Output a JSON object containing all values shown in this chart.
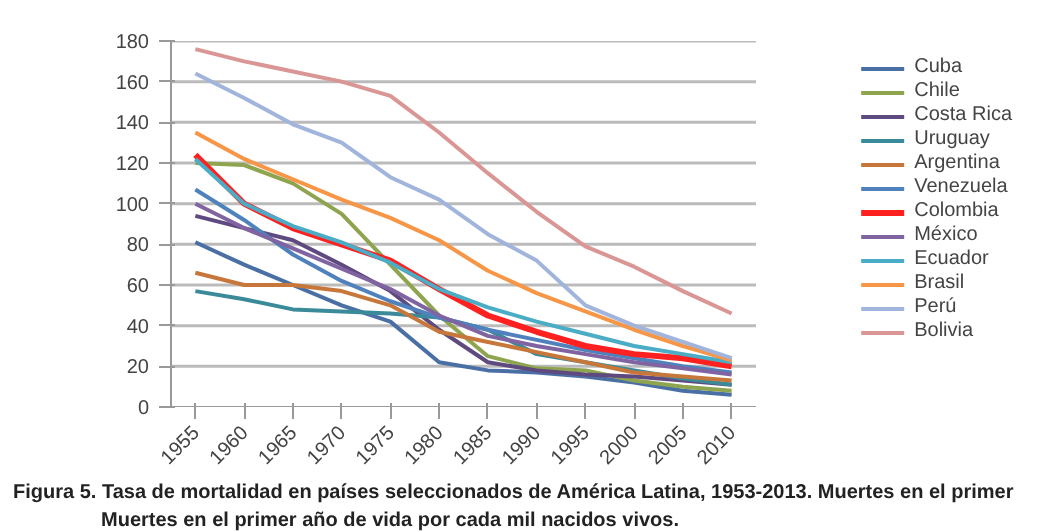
{
  "chart_data": {
    "type": "line",
    "categories": [
      "1955",
      "1960",
      "1965",
      "1970",
      "1975",
      "1980",
      "1985",
      "1990",
      "1995",
      "2000",
      "2005",
      "2010"
    ],
    "ylim": [
      0,
      180
    ],
    "yticks": [
      0,
      20,
      40,
      60,
      80,
      100,
      120,
      140,
      160,
      180
    ],
    "grid": "y",
    "legend": "right",
    "marker": "none",
    "annotations": [
      "Figura 5. Tasa de mortalidad en países seleccionados de América Latina, 1953-2013. Muertes en el primer",
      "Muertes en el primer año de vida por cada mil nacidos vivos."
    ],
    "series": [
      {
        "name": "Cuba",
        "color": "#4a6fa5",
        "values": [
          81,
          70,
          60,
          50,
          42,
          22,
          18,
          17,
          15,
          12,
          8,
          6
        ]
      },
      {
        "name": "Chile",
        "color": "#8ea44f",
        "values": [
          120,
          119,
          110,
          95,
          70,
          45,
          25,
          19,
          18,
          13,
          10,
          8
        ]
      },
      {
        "name": "Costa Rica",
        "color": "#5e4a7e",
        "values": [
          94,
          88,
          82,
          70,
          57,
          38,
          22,
          18,
          16,
          15,
          13,
          11
        ]
      },
      {
        "name": "Uruguay",
        "color": "#3a8a9a",
        "values": [
          57,
          53,
          48,
          47,
          46,
          44,
          38,
          26,
          22,
          18,
          14,
          11
        ]
      },
      {
        "name": "Argentina",
        "color": "#c8773a",
        "values": [
          66,
          60,
          60,
          57,
          50,
          37,
          32,
          27,
          22,
          17,
          15,
          13
        ]
      },
      {
        "name": "Venezuela",
        "color": "#4f81bd",
        "values": [
          107,
          92,
          75,
          62,
          52,
          44,
          38,
          33,
          28,
          24,
          20,
          17
        ]
      },
      {
        "name": "Colombia",
        "color": "#ff2020",
        "values": [
          124,
          100,
          88,
          80,
          72,
          58,
          45,
          37,
          30,
          26,
          24,
          20
        ]
      },
      {
        "name": "México",
        "color": "#8064a2",
        "values": [
          100,
          88,
          78,
          68,
          58,
          45,
          35,
          30,
          26,
          22,
          19,
          16
        ]
      },
      {
        "name": "Ecuador",
        "color": "#4bacc6",
        "values": [
          122,
          100,
          89,
          81,
          71,
          58,
          49,
          42,
          36,
          30,
          26,
          22
        ]
      },
      {
        "name": "Brasil",
        "color": "#f79646",
        "values": [
          135,
          122,
          112,
          102,
          93,
          82,
          67,
          56,
          47,
          38,
          30,
          23
        ]
      },
      {
        "name": "Perú",
        "color": "#a0b4dc",
        "values": [
          164,
          152,
          139,
          130,
          113,
          102,
          85,
          72,
          50,
          40,
          32,
          24
        ]
      },
      {
        "name": "Bolivia",
        "color": "#d99694",
        "values": [
          176,
          170,
          165,
          160,
          153,
          135,
          115,
          96,
          79,
          69,
          57,
          46
        ]
      }
    ]
  }
}
